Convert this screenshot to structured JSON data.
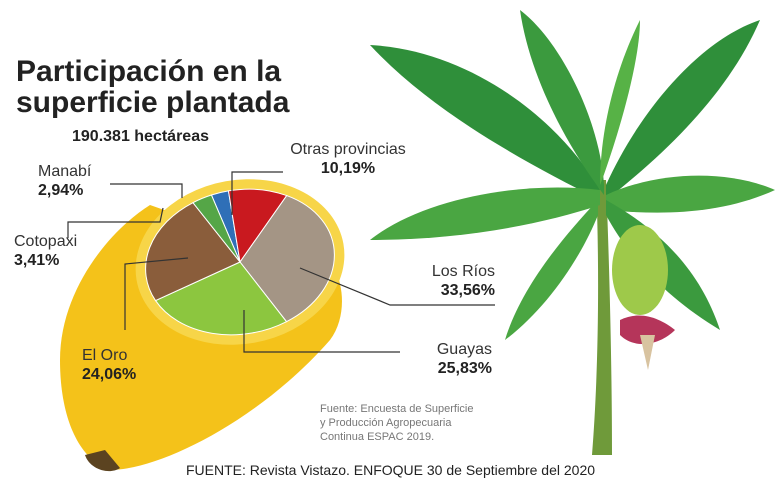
{
  "chart_data": {
    "type": "pie",
    "title": "Participación en la superficie plantada",
    "subtitle": "190.381 hectáreas",
    "categories": [
      "Manabí",
      "Otras provincias",
      "Los Ríos",
      "Guayas",
      "El Oro",
      "Cotopaxi"
    ],
    "values": [
      2.94,
      10.19,
      33.56,
      25.83,
      24.06,
      3.41
    ],
    "value_labels": [
      "2,94%",
      "10,19%",
      "33,56%",
      "25,83%",
      "24,06%",
      "3,41%"
    ],
    "colors": [
      "#2f6fb7",
      "#c9191f",
      "#a49585",
      "#8cc63f",
      "#8a5d3b",
      "#55a647"
    ],
    "source_note": "Fuente: Encuesta de Superficie y Producción Agropecuaria Continua ESPAC 2019.",
    "footer": "FUENTE: Revista Vistazo. ENFOQUE 30 de Septiembre del 2020"
  }
}
